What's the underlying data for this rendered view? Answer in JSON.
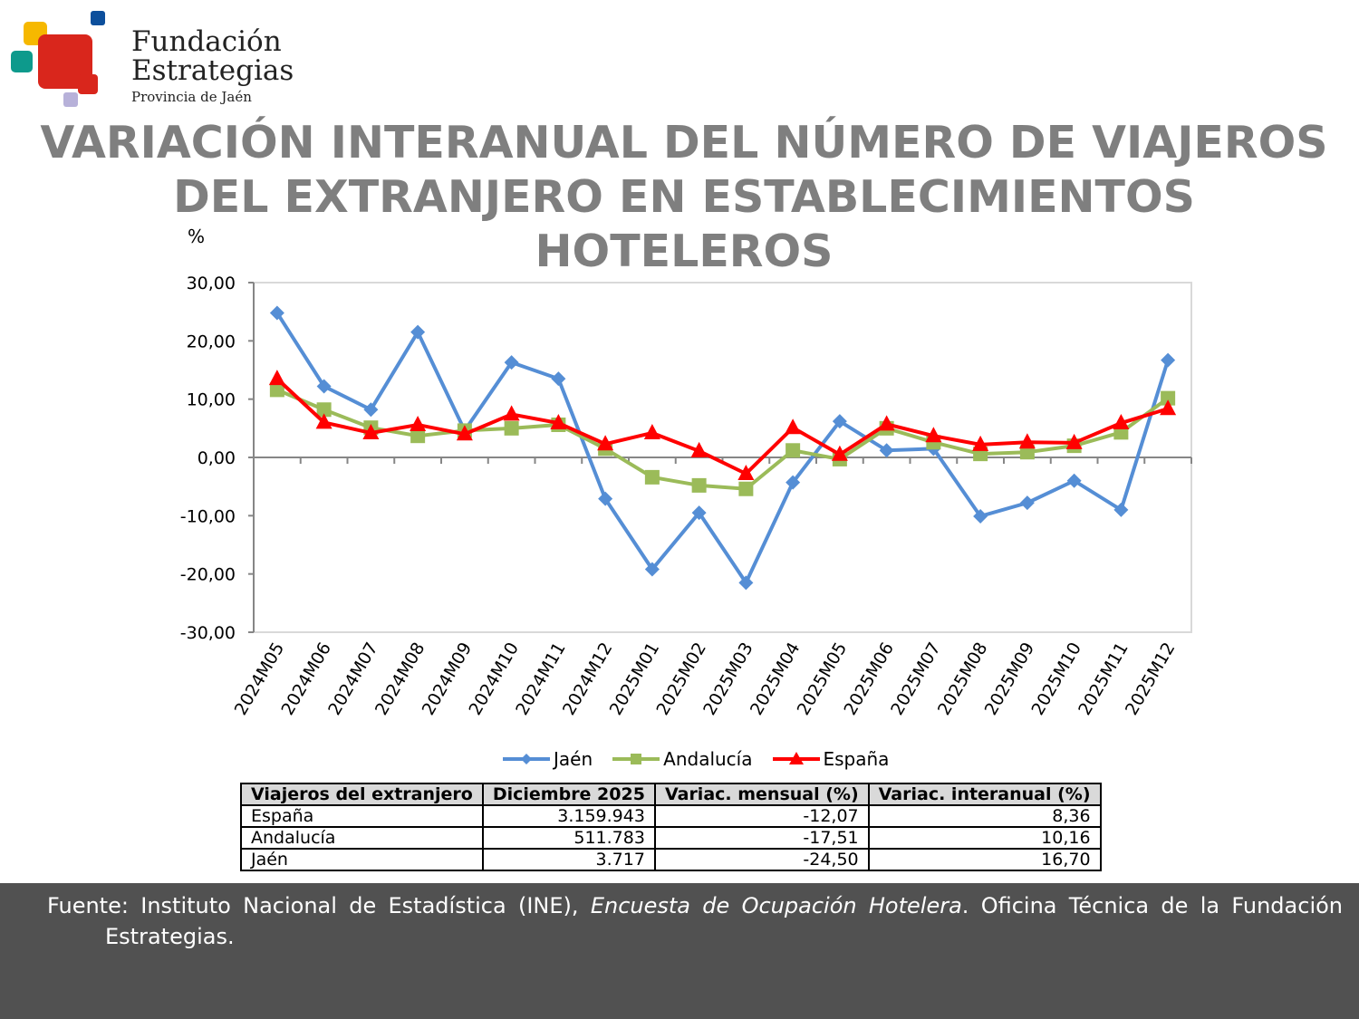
{
  "logo": {
    "line1": "Fundación",
    "line2": "Estrategias",
    "line3": "Provincia de Jaén"
  },
  "title_lines": [
    "VARIACIÓN INTERANUAL DEL NÚMERO DE VIAJEROS",
    "DEL EXTRANJERO EN ESTABLECIMIENTOS HOTELEROS",
    "(%)"
  ],
  "chart_data": {
    "type": "line",
    "ylabel": "%",
    "ylim": [
      -30,
      30
    ],
    "yticks": [
      "30,00",
      "20,00",
      "10,00",
      "0,00",
      "-10,00",
      "-20,00",
      "-30,00"
    ],
    "ytick_values": [
      30,
      20,
      10,
      0,
      -10,
      -20,
      -30
    ],
    "categories": [
      "2024M05",
      "2024M06",
      "2024M07",
      "2024M08",
      "2024M09",
      "2024M10",
      "2024M11",
      "2024M12",
      "2025M01",
      "2025M02",
      "2025M03",
      "2025M04",
      "2025M05",
      "2025M06",
      "2025M07",
      "2025M08",
      "2025M09",
      "2025M10",
      "2025M11",
      "2025M12"
    ],
    "legend_position": "bottom",
    "grid": false,
    "series": [
      {
        "name": "Jaén",
        "color": "#558ed5",
        "marker": "diamond",
        "values": [
          24.8,
          12.2,
          8.2,
          21.5,
          4.6,
          16.3,
          13.5,
          -7.1,
          -19.2,
          -9.5,
          -21.5,
          -4.3,
          6.2,
          1.2,
          1.5,
          -10.1,
          -7.8,
          -4.0,
          -9.0,
          16.7
        ]
      },
      {
        "name": "Andalucía",
        "color": "#9bbb59",
        "marker": "square",
        "values": [
          11.6,
          8.2,
          5.1,
          3.7,
          4.6,
          5.0,
          5.6,
          1.5,
          -3.4,
          -4.8,
          -5.4,
          1.2,
          -0.3,
          5.0,
          2.6,
          0.6,
          0.9,
          2.0,
          4.3,
          10.16
        ]
      },
      {
        "name": "España",
        "color": "#ff0000",
        "marker": "triangle",
        "values": [
          13.5,
          6.0,
          4.2,
          5.6,
          4.0,
          7.4,
          5.9,
          2.3,
          4.2,
          1.1,
          -2.8,
          5.1,
          0.5,
          5.7,
          3.7,
          2.2,
          2.6,
          2.5,
          5.9,
          8.36
        ]
      }
    ]
  },
  "table": {
    "headers": [
      "Viajeros del extranjero",
      "Diciembre 2025",
      "Variac. mensual (%)",
      "Variac. interanual (%)"
    ],
    "rows": [
      [
        "España",
        "3.159.943",
        "-12,07",
        "8,36"
      ],
      [
        "Andalucía",
        "511.783",
        "-17,51",
        "10,16"
      ],
      [
        "Jaén",
        "3.717",
        "-24,50",
        "16,70"
      ]
    ]
  },
  "footer": {
    "pre": "Fuente: Instituto Nacional de Estadística (INE), ",
    "italic": "Encuesta de Ocupación Hotelera",
    "post": ". Oficina Técnica de la Fundación",
    "line2": "Estrategias."
  }
}
